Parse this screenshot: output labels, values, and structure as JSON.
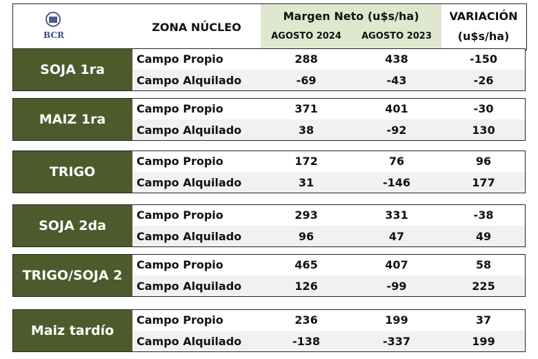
{
  "header": {
    "logo": "BCR",
    "zone": "ZONA NÚCLEO",
    "margin": "Margen Neto (u$s/ha)",
    "col_2024": "AGOSTO 2024",
    "col_2023": "AGOSTO 2023",
    "variation": "VARIACIÓN",
    "variation_unit": "(u$s/ha)"
  },
  "groups": [
    {
      "crop": "SOJA 1ra",
      "rows": [
        {
          "label": "Campo Propio",
          "aug_2024": 288,
          "aug_2023": 438,
          "variation": -150
        },
        {
          "label": "Campo Alquilado",
          "aug_2024": -69,
          "aug_2023": -43,
          "variation": -26
        }
      ]
    },
    {
      "crop": "MAIZ 1ra",
      "rows": [
        {
          "label": "Campo Propio",
          "aug_2024": 371,
          "aug_2023": 401,
          "variation": -30
        },
        {
          "label": "Campo Alquilado",
          "aug_2024": 38,
          "aug_2023": -92,
          "variation": 130
        }
      ]
    },
    {
      "crop": "TRIGO",
      "rows": [
        {
          "label": "Campo Propio",
          "aug_2024": 172,
          "aug_2023": 76,
          "variation": 96
        },
        {
          "label": "Campo Alquilado",
          "aug_2024": 31,
          "aug_2023": -146,
          "variation": 177
        }
      ]
    },
    {
      "crop": "SOJA 2da",
      "rows": [
        {
          "label": "Campo Propio",
          "aug_2024": 293,
          "aug_2023": 331,
          "variation": -38
        },
        {
          "label": "Campo Alquilado",
          "aug_2024": 96,
          "aug_2023": 47,
          "variation": 49
        }
      ]
    },
    {
      "crop": "TRIGO/SOJA 2",
      "rows": [
        {
          "label": "Campo Propio",
          "aug_2024": 465,
          "aug_2023": 407,
          "variation": 58
        },
        {
          "label": "Campo Alquilado",
          "aug_2024": 126,
          "aug_2023": -99,
          "variation": 225
        }
      ]
    },
    {
      "crop": "Maiz tardío",
      "rows": [
        {
          "label": "Campo Propio",
          "aug_2024": 236,
          "aug_2023": 199,
          "variation": 37
        },
        {
          "label": "Campo Alquilado",
          "aug_2024": -138,
          "aug_2023": -337,
          "variation": 199
        }
      ]
    }
  ]
}
